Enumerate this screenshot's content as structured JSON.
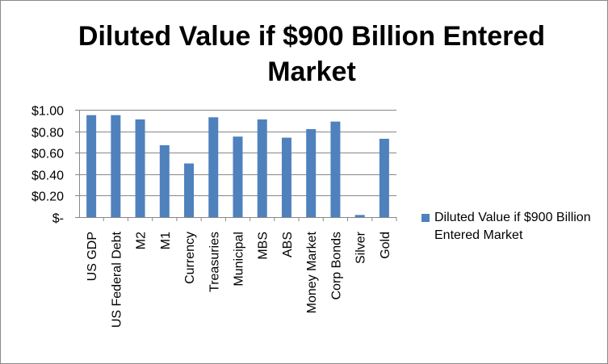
{
  "chart_data": {
    "type": "bar",
    "title": "Diluted Value if $900 Billion Entered Market",
    "categories": [
      "US GDP",
      "US  Federal Debt",
      "M2",
      "M1",
      "Currency",
      "Treasuries",
      "Municipal",
      "MBS",
      "ABS",
      "Money Market",
      "Corp Bonds",
      "Silver",
      "Gold"
    ],
    "series": [
      {
        "name": "Diluted Value if $900 Billion Entered Market",
        "color": "#4f81bd",
        "values": [
          0.95,
          0.95,
          0.91,
          0.67,
          0.5,
          0.93,
          0.75,
          0.91,
          0.74,
          0.82,
          0.89,
          0.02,
          0.73
        ]
      }
    ],
    "ylim": [
      0,
      1.0
    ],
    "yticks": [
      0,
      0.2,
      0.4,
      0.6,
      0.8,
      1.0
    ],
    "ytick_labels": [
      "$-",
      "$0.20",
      "$0.40",
      "$0.60",
      "$0.80",
      "$1.00"
    ],
    "grid": true,
    "legend_position": "right",
    "xlabel": "",
    "ylabel": ""
  }
}
